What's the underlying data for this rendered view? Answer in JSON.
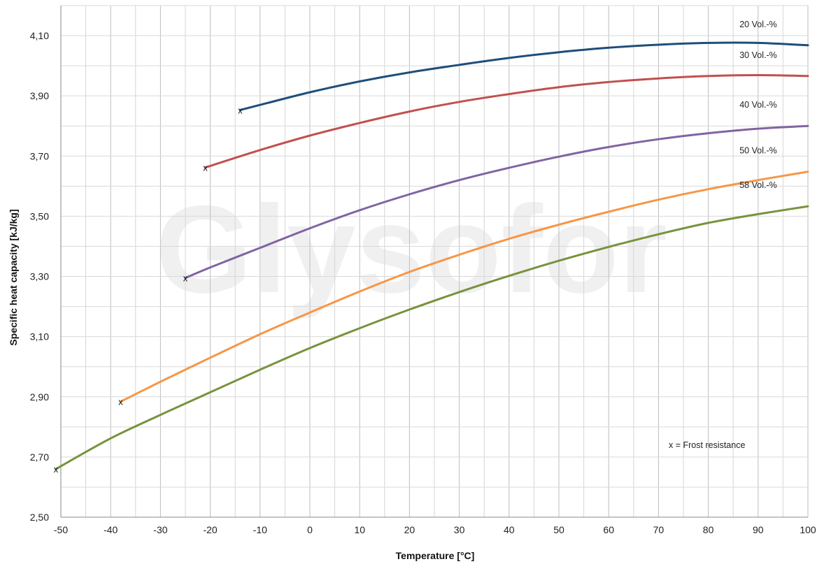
{
  "watermark": "Glysofor",
  "chart_data": {
    "type": "line",
    "xlabel": "Temperature [°C]",
    "ylabel": "Specific heat capacity [kJ/kg]",
    "xlim": [
      -50,
      100
    ],
    "ylim": [
      2.5,
      4.2
    ],
    "x_ticks": [
      -50,
      -40,
      -30,
      -20,
      -10,
      0,
      10,
      20,
      30,
      40,
      50,
      60,
      70,
      80,
      90,
      100
    ],
    "x_tick_labels": [
      "-50",
      "-40",
      "-30",
      "-20",
      "-10",
      "0",
      "10",
      "20",
      "30",
      "40",
      "50",
      "60",
      "70",
      "80",
      "90",
      "100"
    ],
    "y_ticks": [
      2.5,
      2.7,
      2.9,
      3.1,
      3.3,
      3.5,
      3.7,
      3.9,
      4.1
    ],
    "y_tick_labels": [
      "2,50",
      "2,70",
      "2,90",
      "3,10",
      "3,30",
      "3,50",
      "3,70",
      "3,90",
      "4,10"
    ],
    "grid": "vertical every 5 °C, horizontal every 0.1",
    "note": "x = Frost resistance",
    "marker_symbol": "x",
    "series": [
      {
        "name": "20 Vol.-%",
        "color": "#1f4e79",
        "x": [
          -14,
          -10,
          0,
          10,
          20,
          30,
          40,
          50,
          60,
          70,
          80,
          90,
          100
        ],
        "y": [
          3.853,
          3.87,
          3.912,
          3.948,
          3.978,
          4.003,
          4.026,
          4.045,
          4.06,
          4.07,
          4.076,
          4.076,
          4.068
        ],
        "frost_x": -14,
        "frost_y": 3.853
      },
      {
        "name": "30 Vol.-%",
        "color": "#c0504d",
        "x": [
          -21,
          -10,
          0,
          10,
          20,
          30,
          40,
          50,
          60,
          70,
          80,
          90,
          100
        ],
        "y": [
          3.662,
          3.72,
          3.768,
          3.81,
          3.848,
          3.88,
          3.906,
          3.929,
          3.946,
          3.958,
          3.966,
          3.969,
          3.966
        ],
        "frost_x": -21,
        "frost_y": 3.662
      },
      {
        "name": "40 Vol.-%",
        "color": "#8064a2",
        "x": [
          -25,
          -20,
          -10,
          0,
          10,
          20,
          30,
          40,
          50,
          60,
          70,
          80,
          90,
          100
        ],
        "y": [
          3.295,
          3.33,
          3.395,
          3.46,
          3.52,
          3.573,
          3.62,
          3.661,
          3.698,
          3.73,
          3.756,
          3.776,
          3.791,
          3.8
        ],
        "frost_x": -25,
        "frost_y": 3.295
      },
      {
        "name": "50 Vol.-%",
        "color": "#f79646",
        "x": [
          -38,
          -30,
          -20,
          -10,
          0,
          10,
          20,
          30,
          40,
          50,
          60,
          70,
          80,
          90,
          100
        ],
        "y": [
          2.884,
          2.95,
          3.03,
          3.108,
          3.18,
          3.25,
          3.315,
          3.372,
          3.425,
          3.472,
          3.515,
          3.555,
          3.59,
          3.62,
          3.648
        ],
        "frost_x": -38,
        "frost_y": 2.884
      },
      {
        "name": "58 Vol.-%",
        "color": "#77933c",
        "x": [
          -51,
          -40,
          -30,
          -20,
          -10,
          0,
          10,
          20,
          30,
          40,
          50,
          60,
          70,
          80,
          90,
          100
        ],
        "y": [
          2.66,
          2.762,
          2.84,
          2.915,
          2.99,
          3.062,
          3.128,
          3.19,
          3.248,
          3.302,
          3.352,
          3.398,
          3.44,
          3.478,
          3.507,
          3.533
        ],
        "frost_x": -51,
        "frost_y": 2.66
      }
    ]
  }
}
